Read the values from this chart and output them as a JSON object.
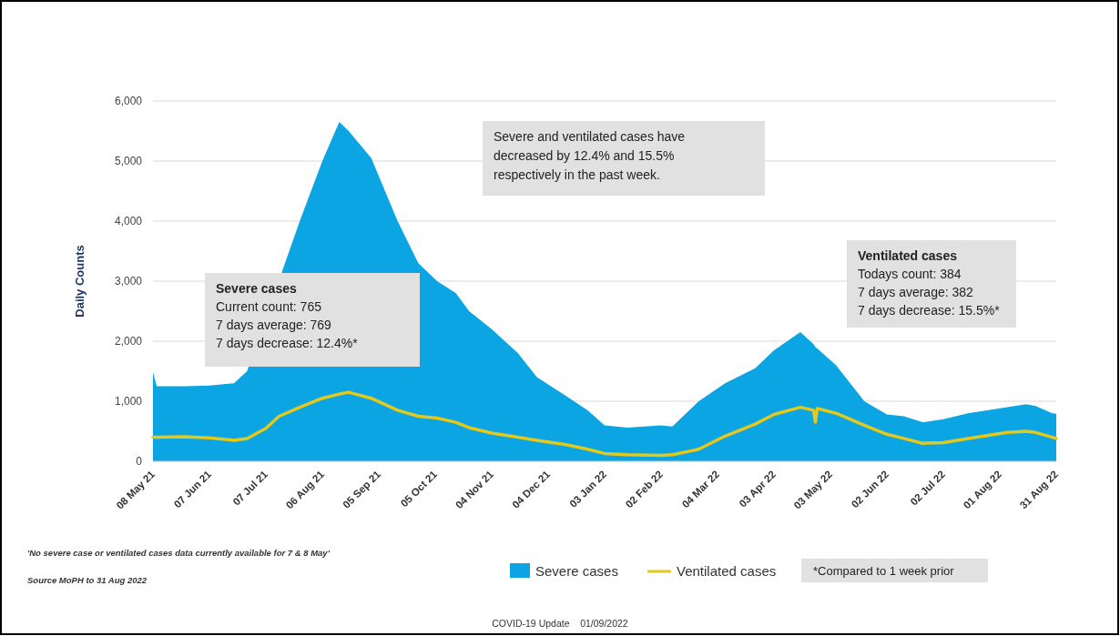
{
  "chart_data": {
    "type": "area",
    "ylabel": "Daily Counts",
    "x": [
      "2021-05-08",
      "2021-05-10",
      "2021-05-25",
      "2021-06-07",
      "2021-06-20",
      "2021-06-27",
      "2021-07-07",
      "2021-07-14",
      "2021-07-25",
      "2021-08-06",
      "2021-08-15",
      "2021-08-20",
      "2021-09-01",
      "2021-09-15",
      "2021-09-26",
      "2021-10-06",
      "2021-10-16",
      "2021-10-23",
      "2021-11-04",
      "2021-11-18",
      "2021-11-28",
      "2021-12-13",
      "2021-12-25",
      "2022-01-03",
      "2022-01-15",
      "2022-02-02",
      "2022-02-08",
      "2022-02-22",
      "2022-03-08",
      "2022-03-24",
      "2022-04-03",
      "2022-04-17",
      "2022-04-24",
      "2022-04-25",
      "2022-04-26",
      "2022-05-06",
      "2022-05-21",
      "2022-06-02",
      "2022-06-11",
      "2022-06-21",
      "2022-07-02",
      "2022-07-15",
      "2022-08-05",
      "2022-08-15",
      "2022-08-20",
      "2022-08-29",
      "2022-08-31"
    ],
    "series": [
      {
        "name": "Severe cases",
        "color": "#0aa5e2",
        "values": [
          1480,
          1250,
          1250,
          1260,
          1300,
          1500,
          null,
          null,
          4000,
          5000,
          5650,
          5500,
          5050,
          4000,
          3300,
          3000,
          2800,
          2500,
          2200,
          1800,
          1400,
          1100,
          850,
          600,
          560,
          600,
          580,
          1000,
          1300,
          1550,
          1850,
          2150,
          1950,
          1900,
          1880,
          1600,
          1000,
          780,
          750,
          650,
          700,
          800,
          900,
          950,
          920,
          800,
          790
        ]
      },
      {
        "name": "Ventilated cases",
        "type": "line",
        "color": "#e3c81e",
        "values": [
          400,
          400,
          410,
          390,
          350,
          380,
          550,
          750,
          900,
          1050,
          1120,
          1150,
          1050,
          850,
          750,
          720,
          650,
          560,
          470,
          400,
          350,
          280,
          200,
          130,
          110,
          100,
          110,
          200,
          420,
          620,
          780,
          900,
          850,
          650,
          880,
          800,
          600,
          450,
          380,
          300,
          310,
          380,
          480,
          500,
          480,
          400,
          380
        ]
      }
    ],
    "xlim": [
      "2021-05-08",
      "2022-08-31"
    ],
    "xticks": [
      {
        "value": "2021-05-08",
        "label": "08 May 21"
      },
      {
        "value": "2021-06-07",
        "label": "07 Jun 21"
      },
      {
        "value": "2021-07-07",
        "label": "07 Jul 21"
      },
      {
        "value": "2021-08-06",
        "label": "06 Aug 21"
      },
      {
        "value": "2021-09-05",
        "label": "05 Sep 21"
      },
      {
        "value": "2021-10-05",
        "label": "05 Oct 21"
      },
      {
        "value": "2021-11-04",
        "label": "04 Nov 21"
      },
      {
        "value": "2021-12-04",
        "label": "04 Dec 21"
      },
      {
        "value": "2022-01-03",
        "label": "03 Jan 22"
      },
      {
        "value": "2022-02-02",
        "label": "02 Feb 22"
      },
      {
        "value": "2022-03-04",
        "label": "04 Mar 22"
      },
      {
        "value": "2022-04-03",
        "label": "03 Apr 22"
      },
      {
        "value": "2022-05-03",
        "label": "03 May 22"
      },
      {
        "value": "2022-06-02",
        "label": "02 Jun 22"
      },
      {
        "value": "2022-07-02",
        "label": "02 Jul 22"
      },
      {
        "value": "2022-08-01",
        "label": "01 Aug 22"
      },
      {
        "value": "2022-08-31",
        "label": "31 Aug 22"
      }
    ],
    "ylim": [
      0,
      6000
    ],
    "yticks": [
      0,
      {
        "value": 1000,
        "label": "1,000"
      },
      {
        "value": 2000,
        "label": "2,000"
      },
      {
        "value": 3000,
        "label": "3,000"
      },
      {
        "value": 4000,
        "label": "4,000"
      },
      {
        "value": 5000,
        "label": "5,000"
      },
      {
        "value": 6000,
        "label": "6,000"
      }
    ],
    "grid": "y",
    "legend": "bottom",
    "annotations": [
      "Severe and ventilated cases have\ndecreased by 12.4% and 15.5%\nrespectively in the past week.",
      "Severe cases\nCurrent count: 765\n7 days average: 769\n7 days decrease: 12.4%*",
      "Ventilated cases\nTodays count: 384\n7 days average: 382\n7 days decrease: 15.5%*",
      "'No severe case or ventilated cases data currently available for 7 & 8 May'",
      "Source MoPH to 31 Aug 2022",
      "*Compared to 1 week prior",
      "COVID-19 Update    01/09/2022"
    ]
  }
}
